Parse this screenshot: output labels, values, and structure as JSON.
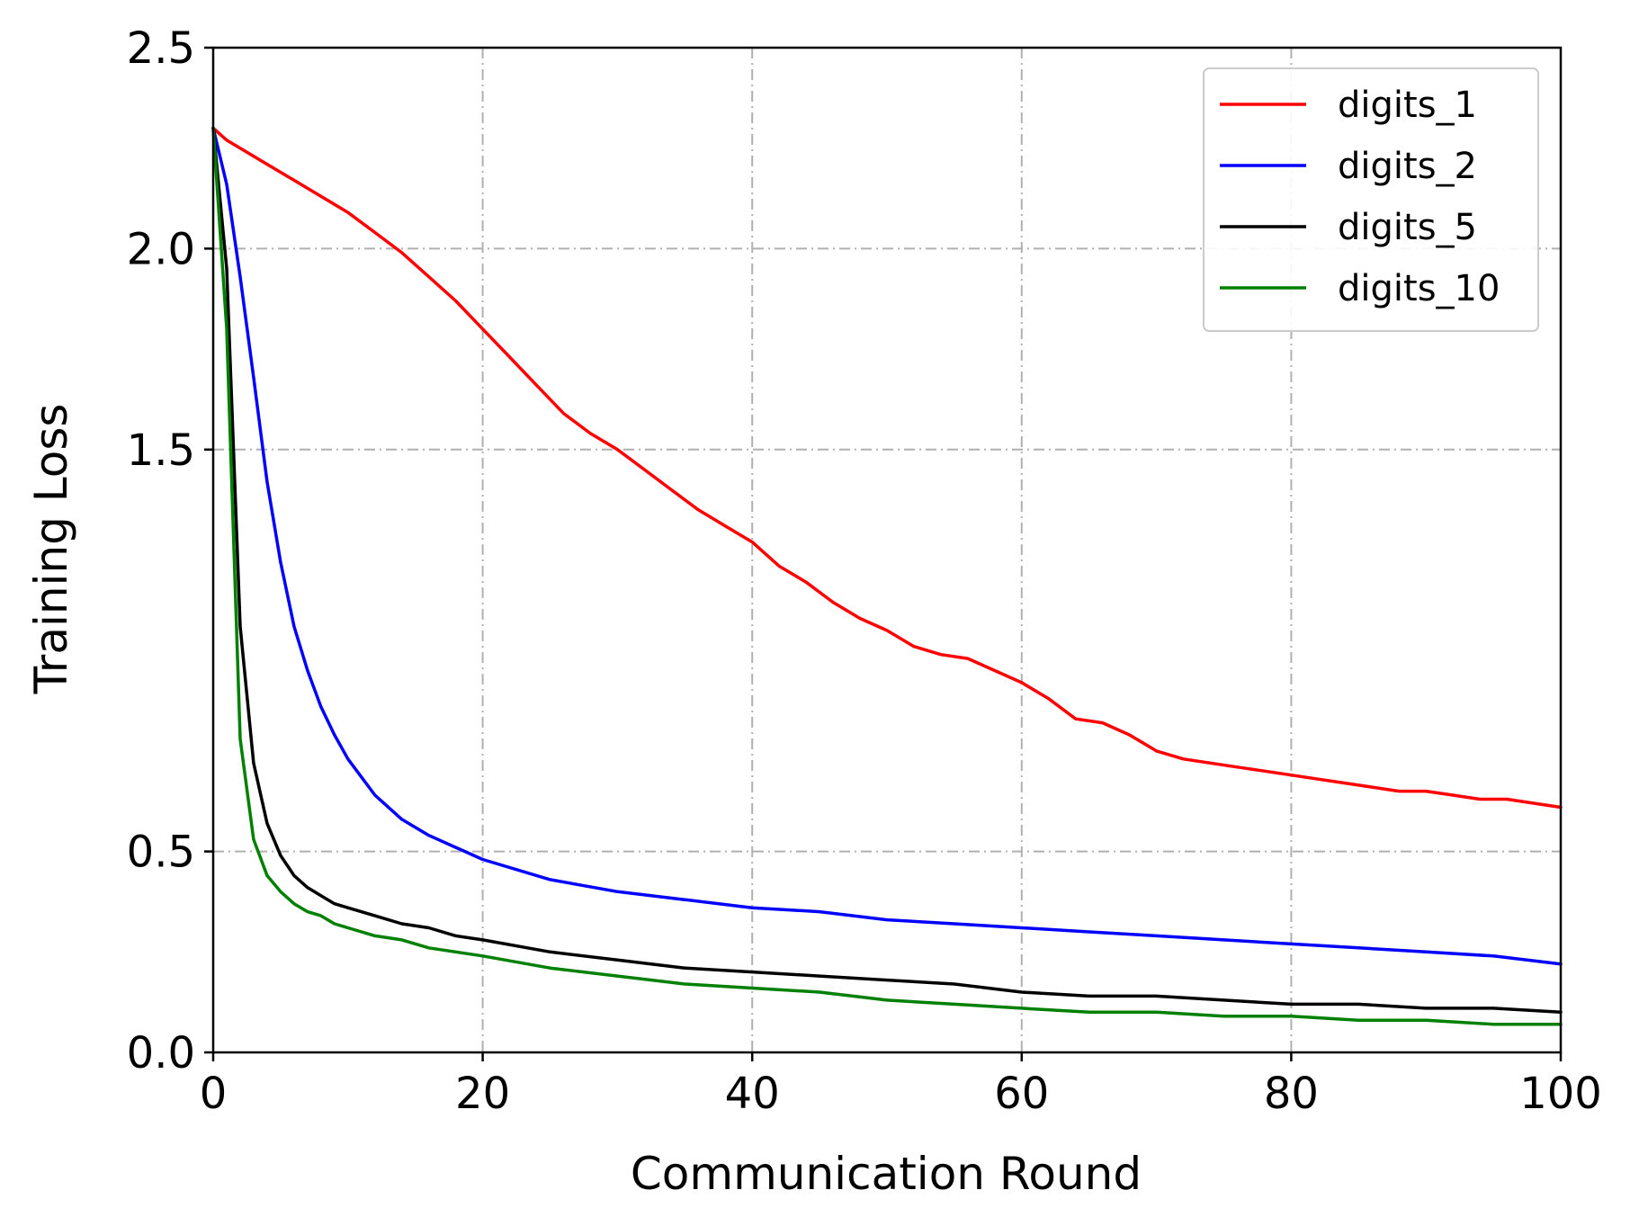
{
  "chart_data": {
    "type": "line",
    "title": "",
    "xlabel": "Communication Round",
    "ylabel": "Training Loss",
    "xlim": [
      0,
      100
    ],
    "ylim": [
      0,
      2.5
    ],
    "xticks": [
      0,
      20,
      40,
      60,
      80,
      100
    ],
    "xtick_labels": [
      "0",
      "20",
      "40",
      "60",
      "80",
      "100"
    ],
    "yticks": [
      0.0,
      0.5,
      1.5,
      2.0,
      2.5
    ],
    "ytick_labels": [
      "0.0",
      "0.5",
      "1.5",
      "2.0",
      "2.5"
    ],
    "grid": true,
    "legend_position": "top-right",
    "series": [
      {
        "name": "digits_1",
        "color": "#ff0000",
        "x": [
          0,
          1,
          2,
          4,
          6,
          8,
          10,
          12,
          14,
          16,
          18,
          20,
          22,
          24,
          26,
          28,
          30,
          32,
          34,
          36,
          38,
          40,
          42,
          44,
          46,
          48,
          50,
          52,
          54,
          56,
          58,
          60,
          62,
          64,
          66,
          68,
          70,
          72,
          74,
          76,
          78,
          80,
          82,
          84,
          86,
          88,
          90,
          92,
          94,
          96,
          98,
          100
        ],
        "y": [
          2.3,
          2.27,
          2.25,
          2.21,
          2.17,
          2.13,
          2.09,
          2.04,
          1.99,
          1.93,
          1.87,
          1.8,
          1.73,
          1.66,
          1.59,
          1.54,
          1.5,
          1.45,
          1.4,
          1.35,
          1.31,
          1.27,
          1.21,
          1.17,
          1.12,
          1.08,
          1.05,
          1.01,
          0.99,
          0.98,
          0.95,
          0.92,
          0.88,
          0.83,
          0.82,
          0.79,
          0.75,
          0.73,
          0.72,
          0.71,
          0.7,
          0.69,
          0.68,
          0.67,
          0.66,
          0.65,
          0.65,
          0.64,
          0.63,
          0.63,
          0.62,
          0.61
        ]
      },
      {
        "name": "digits_2",
        "color": "#0000ff",
        "x": [
          0,
          1,
          2,
          3,
          4,
          5,
          6,
          7,
          8,
          9,
          10,
          12,
          14,
          16,
          18,
          20,
          25,
          30,
          35,
          40,
          45,
          50,
          55,
          60,
          65,
          70,
          75,
          80,
          85,
          90,
          95,
          100
        ],
        "y": [
          2.3,
          2.16,
          1.93,
          1.68,
          1.42,
          1.22,
          1.06,
          0.95,
          0.86,
          0.79,
          0.73,
          0.64,
          0.58,
          0.54,
          0.51,
          0.48,
          0.43,
          0.4,
          0.38,
          0.36,
          0.35,
          0.33,
          0.32,
          0.31,
          0.3,
          0.29,
          0.28,
          0.27,
          0.26,
          0.25,
          0.24,
          0.22
        ]
      },
      {
        "name": "digits_5",
        "color": "#000000",
        "x": [
          0,
          1,
          2,
          3,
          4,
          5,
          6,
          7,
          8,
          9,
          10,
          12,
          14,
          16,
          18,
          20,
          25,
          30,
          35,
          40,
          45,
          50,
          55,
          60,
          65,
          70,
          75,
          80,
          85,
          90,
          95,
          100
        ],
        "y": [
          2.3,
          1.95,
          1.06,
          0.72,
          0.57,
          0.49,
          0.44,
          0.41,
          0.39,
          0.37,
          0.36,
          0.34,
          0.32,
          0.31,
          0.29,
          0.28,
          0.25,
          0.23,
          0.21,
          0.2,
          0.19,
          0.18,
          0.17,
          0.15,
          0.14,
          0.14,
          0.13,
          0.12,
          0.12,
          0.11,
          0.11,
          0.1
        ]
      },
      {
        "name": "digits_10",
        "color": "#008000",
        "x": [
          0,
          1,
          2,
          3,
          4,
          5,
          6,
          7,
          8,
          9,
          10,
          12,
          14,
          16,
          18,
          20,
          25,
          30,
          35,
          40,
          45,
          50,
          55,
          60,
          65,
          70,
          75,
          80,
          85,
          90,
          95,
          100
        ],
        "y": [
          2.3,
          1.8,
          0.78,
          0.53,
          0.44,
          0.4,
          0.37,
          0.35,
          0.34,
          0.32,
          0.31,
          0.29,
          0.28,
          0.26,
          0.25,
          0.24,
          0.21,
          0.19,
          0.17,
          0.16,
          0.15,
          0.13,
          0.12,
          0.11,
          0.1,
          0.1,
          0.09,
          0.09,
          0.08,
          0.08,
          0.07,
          0.07
        ]
      }
    ]
  }
}
